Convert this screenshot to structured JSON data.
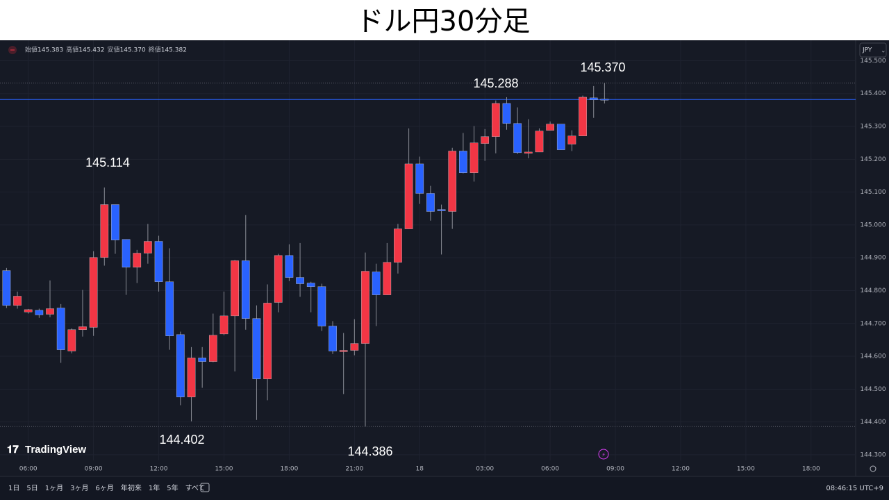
{
  "title": "ドル円30分足",
  "legend": {
    "items": [
      {
        "label": "始値",
        "value": "145.383"
      },
      {
        "label": "高値",
        "value": "145.432"
      },
      {
        "label": "安値",
        "value": "145.370"
      },
      {
        "label": "終値",
        "value": "145.382"
      }
    ]
  },
  "currency": "JPY",
  "logo": "TradingView",
  "chart_data": {
    "type": "candlestick",
    "annotations": [
      "145.114",
      "144.402",
      "145.288",
      "145.370",
      "144.386"
    ],
    "up_color": "#f23645",
    "down_color": "#2962ff",
    "open": [
      144.861,
      144.755,
      144.735,
      144.74,
      144.728,
      144.747,
      144.616,
      144.681,
      144.688,
      144.901,
      145.062,
      144.956,
      144.871,
      144.914,
      144.95,
      144.827,
      144.666,
      144.476,
      144.595,
      144.584,
      144.668,
      144.723,
      144.891,
      144.715,
      144.531,
      144.764,
      144.907,
      144.84,
      144.823,
      144.812,
      144.692,
      144.614,
      144.618,
      144.639,
      144.857,
      144.787,
      144.886,
      144.988,
      145.186,
      145.096,
      145.047,
      145.041,
      145.225,
      145.159,
      145.248,
      145.269,
      145.37,
      145.309,
      145.218,
      145.222,
      145.288,
      145.307,
      145.246,
      145.271,
      145.387,
      145.383
    ],
    "high": [
      144.869,
      144.797,
      144.744,
      144.745,
      144.831,
      144.759,
      144.685,
      144.802,
      144.92,
      145.114,
      145.062,
      144.956,
      144.924,
      145.003,
      144.967,
      144.929,
      144.675,
      144.628,
      144.628,
      144.73,
      144.797,
      144.893,
      145.03,
      144.755,
      144.819,
      144.912,
      144.941,
      144.945,
      144.827,
      144.821,
      144.707,
      144.671,
      144.713,
      144.916,
      144.882,
      144.945,
      145.003,
      145.294,
      145.208,
      145.119,
      145.062,
      145.235,
      145.28,
      145.301,
      145.292,
      145.379,
      145.389,
      145.358,
      145.322,
      145.294,
      145.315,
      145.307,
      145.288,
      145.394,
      145.423,
      145.432
    ],
    "low": [
      144.747,
      144.745,
      144.73,
      144.717,
      144.719,
      144.58,
      144.609,
      144.66,
      144.662,
      144.876,
      144.912,
      144.787,
      144.823,
      144.882,
      144.797,
      144.62,
      144.451,
      144.402,
      144.504,
      144.582,
      144.664,
      144.554,
      144.681,
      144.406,
      144.466,
      144.734,
      144.829,
      144.781,
      144.734,
      144.677,
      144.607,
      144.485,
      144.603,
      144.386,
      144.692,
      144.787,
      144.852,
      144.988,
      145.064,
      145.013,
      144.91,
      144.988,
      145.157,
      145.132,
      145.195,
      145.218,
      145.29,
      145.216,
      145.203,
      145.222,
      145.288,
      145.229,
      145.225,
      145.271,
      145.326,
      145.37
    ],
    "close": [
      144.755,
      144.783,
      144.742,
      144.726,
      144.745,
      144.62,
      144.681,
      144.69,
      144.901,
      145.062,
      144.954,
      144.871,
      144.914,
      144.95,
      144.827,
      144.662,
      144.476,
      144.595,
      144.584,
      144.664,
      144.723,
      144.891,
      144.715,
      144.531,
      144.762,
      144.907,
      144.84,
      144.821,
      144.812,
      144.692,
      144.616,
      144.618,
      144.639,
      144.859,
      144.787,
      144.886,
      144.988,
      145.186,
      145.096,
      145.041,
      145.043,
      145.225,
      145.159,
      145.25,
      145.269,
      145.37,
      145.309,
      145.22,
      145.222,
      145.286,
      145.307,
      145.229,
      145.271,
      145.389,
      145.381,
      145.382
    ],
    "xlim": [
      -0.6,
      78.1
    ],
    "xticks": [
      {
        "value": 2,
        "label": "06:00"
      },
      {
        "value": 8,
        "label": "09:00"
      },
      {
        "value": 14,
        "label": "12:00"
      },
      {
        "value": 20,
        "label": "15:00"
      },
      {
        "value": 26,
        "label": "18:00"
      },
      {
        "value": 32,
        "label": "21:00"
      },
      {
        "value": 38,
        "label": "18"
      },
      {
        "value": 44,
        "label": "03:00"
      },
      {
        "value": 50,
        "label": "06:00"
      },
      {
        "value": 56,
        "label": "09:00"
      },
      {
        "value": 62,
        "label": "12:00"
      },
      {
        "value": 68,
        "label": "15:00"
      },
      {
        "value": 74,
        "label": "18:00"
      }
    ],
    "ylim": [
      144.23,
      145.52
    ],
    "yticks": [
      {
        "value": 144.3,
        "label": "144.300"
      },
      {
        "value": 144.4,
        "label": "144.400"
      },
      {
        "value": 144.5,
        "label": "144.500"
      },
      {
        "value": 144.6,
        "label": "144.600"
      },
      {
        "value": 144.7,
        "label": "144.700"
      },
      {
        "value": 144.8,
        "label": "144.800"
      },
      {
        "value": 144.9,
        "label": "144.900"
      },
      {
        "value": 145.0,
        "label": "145.000"
      },
      {
        "value": 145.1,
        "label": "145.100"
      },
      {
        "value": 145.2,
        "label": "145.200"
      },
      {
        "value": 145.3,
        "label": "145.300"
      },
      {
        "value": 145.4,
        "label": "145.400"
      },
      {
        "value": 145.5,
        "label": "145.500"
      }
    ],
    "grid": true
  },
  "toolbar": {
    "ranges": [
      "1日",
      "5日",
      "1ヶ月",
      "3ヶ月",
      "6ヶ月",
      "年初来",
      "1年",
      "5年",
      "すべて"
    ],
    "clock": "08:46:15 UTC+9"
  }
}
